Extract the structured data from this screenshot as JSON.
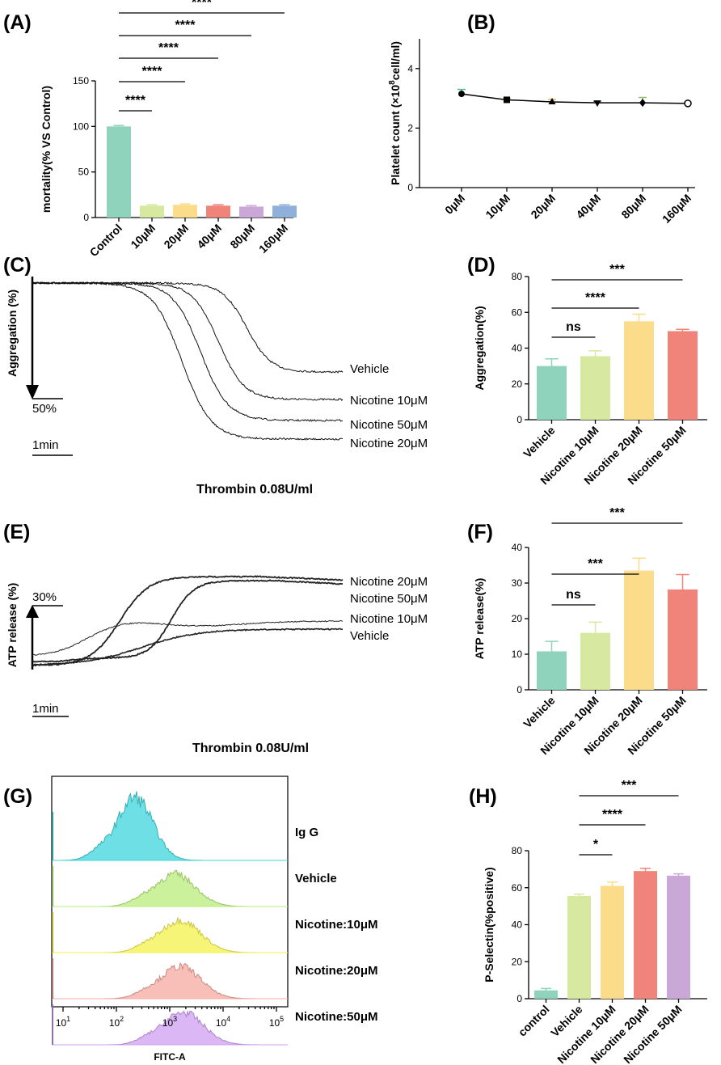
{
  "chart_data": [
    {
      "panel": "(A)",
      "type": "bar",
      "categories": [
        "Control",
        "10μM",
        "20μM",
        "40μM",
        "80μM",
        "160μM"
      ],
      "values": [
        100,
        13,
        14,
        13,
        12,
        13
      ],
      "errors": [
        1,
        1,
        1,
        1,
        1,
        1
      ],
      "colors": [
        "#8fd3bd",
        "#d7e8a0",
        "#fbdc8a",
        "#f0837a",
        "#c9a7d6",
        "#8fb0d8"
      ],
      "ylabel": "mortality(% VS Control)",
      "ylim": [
        0,
        150
      ],
      "yticks": [
        0,
        50,
        100,
        150
      ],
      "significance": [
        {
          "from": 0,
          "to": 1,
          "label": "****"
        },
        {
          "from": 0,
          "to": 2,
          "label": "****"
        },
        {
          "from": 0,
          "to": 3,
          "label": "****"
        },
        {
          "from": 0,
          "to": 4,
          "label": "****"
        },
        {
          "from": 0,
          "to": 5,
          "label": "****"
        }
      ]
    },
    {
      "panel": "(B)",
      "type": "line",
      "categories": [
        "0μM",
        "10μM",
        "20μM",
        "40μM",
        "80μM",
        "160μM"
      ],
      "values": [
        3.15,
        2.95,
        2.88,
        2.85,
        2.85,
        2.83
      ],
      "errors": [
        0.15,
        0.05,
        0.08,
        0.05,
        0.18,
        0.05
      ],
      "markers": [
        "circle",
        "square",
        "triangle-up",
        "triangle-down",
        "diamond",
        "circle-open"
      ],
      "ylabel_main": "Platelet count (×10",
      "ylabel_exp": "8",
      "ylabel_tail": "cell/ml)",
      "ylim": [
        0,
        5
      ],
      "yticks": [
        0,
        2,
        4
      ]
    },
    {
      "panel": "(C)",
      "type": "line",
      "series": [
        {
          "name": "Vehicle"
        },
        {
          "name": "Nicotine 10μM"
        },
        {
          "name": "Nicotine 50μM"
        },
        {
          "name": "Nicotine 20μM"
        }
      ],
      "ylabel": "Aggregation (%)",
      "scale_y": "50%",
      "scale_x": "1min",
      "caption": "Thrombin 0.08U/ml"
    },
    {
      "panel": "(D)",
      "type": "bar",
      "categories": [
        "Vehicle",
        "Nicotine 10μM",
        "Nicotine 20μM",
        "Nicotine 50μM"
      ],
      "values": [
        30,
        35.5,
        55,
        49.5
      ],
      "errors": [
        4,
        3,
        4,
        1
      ],
      "colors": [
        "#8fd3bd",
        "#d7e8a0",
        "#fbdc8a",
        "#f0837a"
      ],
      "ylabel": "Aggregation(%)",
      "ylim": [
        0,
        80
      ],
      "yticks": [
        0,
        20,
        40,
        60,
        80
      ],
      "significance": [
        {
          "from": 0,
          "to": 1,
          "label": "ns"
        },
        {
          "from": 0,
          "to": 2,
          "label": "****"
        },
        {
          "from": 0,
          "to": 3,
          "label": "***"
        }
      ]
    },
    {
      "panel": "(E)",
      "type": "line",
      "series": [
        {
          "name": "Nicotine 20μM"
        },
        {
          "name": "Nicotine 50μM"
        },
        {
          "name": "Nicotine 10μM"
        },
        {
          "name": "Vehicle"
        }
      ],
      "ylabel": "ATP release (%)",
      "scale_y": "30%",
      "scale_x": "1min",
      "caption": "Thrombin 0.08U/ml"
    },
    {
      "panel": "(F)",
      "type": "bar",
      "categories": [
        "Vehicle",
        "Nicotine 10μM",
        "Nicotine 20μM",
        "Nicotine 50μM"
      ],
      "values": [
        10.8,
        16,
        33.5,
        28.2
      ],
      "errors": [
        2.8,
        3,
        3.5,
        4.2
      ],
      "colors": [
        "#8fd3bd",
        "#d7e8a0",
        "#fbdc8a",
        "#f0837a"
      ],
      "ylabel": "ATP release(%)",
      "ylim": [
        0,
        40
      ],
      "yticks": [
        0,
        10,
        20,
        30,
        40
      ],
      "significance": [
        {
          "from": 0,
          "to": 1,
          "label": "ns"
        },
        {
          "from": 0,
          "to": 2,
          "label": "***"
        },
        {
          "from": 0,
          "to": 3,
          "label": "***"
        }
      ]
    },
    {
      "panel": "(G)",
      "type": "area",
      "xlabel": "FITC-A",
      "xticks": [
        {
          "base": "10",
          "exp": "1"
        },
        {
          "base": "10",
          "exp": "2"
        },
        {
          "base": "10",
          "exp": "3"
        },
        {
          "base": "10",
          "exp": "4"
        },
        {
          "base": "10",
          "exp": "5"
        }
      ],
      "series": [
        {
          "name": "Ig G",
          "color": "#3ed6dc",
          "peak_log": 2.35
        },
        {
          "name": "Vehicle",
          "color": "#b9ec7c",
          "peak_log": 3.1
        },
        {
          "name": "Nicotine:10μM",
          "color": "#f4f14a",
          "peak_log": 3.2
        },
        {
          "name": "Nicotine:20μM",
          "color": "#f6a8a0",
          "peak_log": 3.2
        },
        {
          "name": "Nicotine:50μM",
          "color": "#cf9ff2",
          "peak_log": 3.25
        }
      ]
    },
    {
      "panel": "(H)",
      "type": "bar",
      "categories": [
        "control",
        "Vehicle",
        "Nicotine 10μM",
        "Nicotine 20μM",
        "Nicotine 50μM"
      ],
      "values": [
        4.5,
        55.5,
        61,
        69,
        66.5
      ],
      "errors": [
        1,
        1,
        2,
        1.5,
        1
      ],
      "colors": [
        "#8fd3bd",
        "#d7e8a0",
        "#fbdc8a",
        "#f0837a",
        "#c9a7d6"
      ],
      "ylabel": "P-Selectin(%positive)",
      "ylim": [
        0,
        80
      ],
      "yticks": [
        0,
        20,
        40,
        60,
        80
      ],
      "significance": [
        {
          "from": 1,
          "to": 2,
          "label": "*"
        },
        {
          "from": 1,
          "to": 3,
          "label": "****"
        },
        {
          "from": 1,
          "to": 4,
          "label": "***"
        }
      ]
    }
  ]
}
